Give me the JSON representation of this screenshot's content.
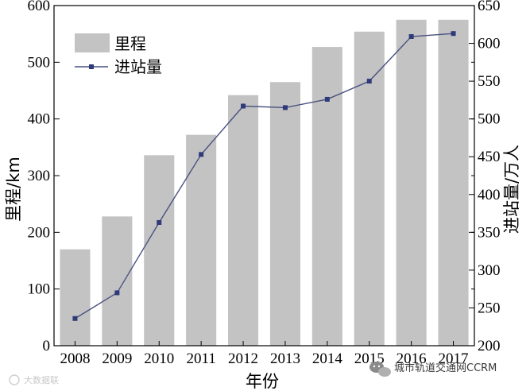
{
  "chart_data": {
    "type": "bar",
    "categories": [
      "2008",
      "2009",
      "2010",
      "2011",
      "2012",
      "2013",
      "2014",
      "2015",
      "2016",
      "2017"
    ],
    "series": [
      {
        "name": "里程",
        "type": "bar",
        "axis": "left",
        "values": [
          170,
          228,
          336,
          372,
          442,
          465,
          527,
          554,
          575,
          575
        ],
        "color": "#c3c3c3"
      },
      {
        "name": "进站量",
        "type": "line",
        "axis": "right",
        "values": [
          236,
          270,
          363,
          453,
          517,
          515,
          526,
          550,
          609,
          613
        ],
        "color": "#4a5280"
      }
    ],
    "xlabel": "年份",
    "ylabel": "里程/km",
    "y2label": "进站量/万人",
    "ylim": [
      0,
      600
    ],
    "y2lim": [
      200,
      650
    ],
    "yticks": [
      "0",
      "100",
      "200",
      "300",
      "400",
      "500",
      "600"
    ],
    "y2ticks": [
      "200",
      "250",
      "300",
      "350",
      "400",
      "450",
      "500",
      "550",
      "600",
      "650"
    ],
    "legend": "top-left",
    "grid": false
  },
  "watermark": {
    "right_text": "城市轨道交通网CCRM",
    "right_icon": "wechat-icon",
    "left_text": "大数据联"
  }
}
